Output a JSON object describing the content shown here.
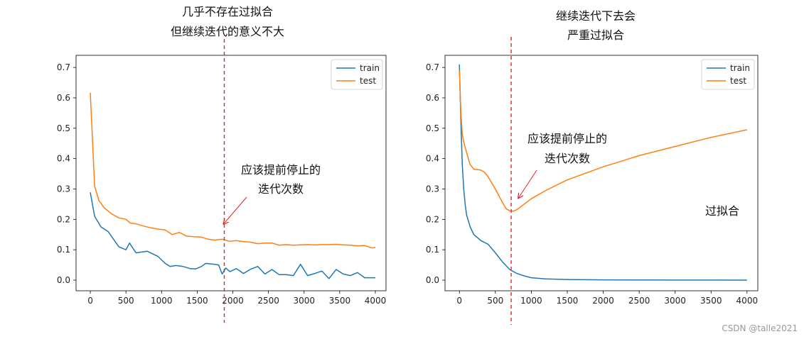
{
  "chart_data": [
    {
      "type": "line",
      "title": "",
      "xlabel": "",
      "ylabel": "",
      "xlim": [
        -200,
        4150
      ],
      "ylim": [
        -0.035,
        0.74
      ],
      "xticks": [
        0,
        500,
        1000,
        1500,
        2000,
        2500,
        3000,
        3500,
        4000
      ],
      "yticks": [
        0.0,
        0.1,
        0.2,
        0.3,
        0.4,
        0.5,
        0.6,
        0.7
      ],
      "xtick_labels": [
        "0",
        "500",
        "1000",
        "1500",
        "2000",
        "2500",
        "3000",
        "3500",
        "4000"
      ],
      "ytick_labels": [
        "0.0",
        "0.1",
        "0.2",
        "0.3",
        "0.4",
        "0.5",
        "0.6",
        "0.7"
      ],
      "legend": "top-right",
      "series": [
        {
          "name": "train",
          "color": "#1f77b4",
          "x": [
            0,
            60,
            150,
            250,
            400,
            500,
            550,
            640,
            800,
            950,
            1050,
            1120,
            1200,
            1300,
            1400,
            1480,
            1560,
            1620,
            1750,
            1800,
            1850,
            1900,
            1960,
            2050,
            2150,
            2250,
            2350,
            2450,
            2550,
            2650,
            2750,
            2850,
            2950,
            3050,
            3150,
            3250,
            3350,
            3450,
            3550,
            3650,
            3750,
            3850,
            4000
          ],
          "y": [
            0.289,
            0.21,
            0.175,
            0.16,
            0.11,
            0.1,
            0.122,
            0.09,
            0.095,
            0.078,
            0.055,
            0.045,
            0.048,
            0.045,
            0.038,
            0.037,
            0.045,
            0.055,
            0.052,
            0.05,
            0.02,
            0.04,
            0.028,
            0.038,
            0.022,
            0.036,
            0.045,
            0.02,
            0.035,
            0.018,
            0.018,
            0.015,
            0.052,
            0.015,
            0.022,
            0.03,
            0.005,
            0.035,
            0.02,
            0.015,
            0.025,
            0.008,
            0.008
          ]
        },
        {
          "name": "test",
          "color": "#ff7f0e",
          "x": [
            0,
            60,
            120,
            200,
            300,
            400,
            500,
            560,
            650,
            750,
            850,
            950,
            1050,
            1150,
            1250,
            1350,
            1450,
            1550,
            1650,
            1750,
            1850,
            1950,
            2050,
            2150,
            2250,
            2350,
            2450,
            2550,
            2650,
            2750,
            2850,
            2950,
            3050,
            3150,
            3250,
            3350,
            3450,
            3550,
            3650,
            3750,
            3850,
            3950,
            4000
          ],
          "y": [
            0.617,
            0.31,
            0.262,
            0.237,
            0.218,
            0.205,
            0.2,
            0.188,
            0.185,
            0.178,
            0.172,
            0.168,
            0.165,
            0.15,
            0.157,
            0.145,
            0.143,
            0.142,
            0.135,
            0.132,
            0.135,
            0.128,
            0.13,
            0.127,
            0.125,
            0.12,
            0.122,
            0.122,
            0.115,
            0.117,
            0.115,
            0.116,
            0.117,
            0.116,
            0.117,
            0.117,
            0.118,
            0.116,
            0.115,
            0.113,
            0.114,
            0.106,
            0.108
          ]
        }
      ],
      "early_stop_line_x": 1880,
      "annotations": [
        {
          "lines": [
            "几乎不存在过拟合",
            "但继续迭代的意义不大"
          ]
        },
        {
          "lines": [
            "应该提前停止的",
            "迭代次数"
          ],
          "arrow_to": [
            1870,
            0.185
          ]
        }
      ]
    },
    {
      "type": "line",
      "title": "",
      "xlabel": "",
      "ylabel": "",
      "xlim": [
        -200,
        4150
      ],
      "ylim": [
        -0.035,
        0.74
      ],
      "xticks": [
        0,
        500,
        1000,
        1500,
        2000,
        2500,
        3000,
        3500,
        4000
      ],
      "yticks": [
        0.0,
        0.1,
        0.2,
        0.3,
        0.4,
        0.5,
        0.6,
        0.7
      ],
      "xtick_labels": [
        "0",
        "500",
        "1000",
        "1500",
        "2000",
        "2500",
        "3000",
        "3500",
        "4000"
      ],
      "ytick_labels": [
        "0.0",
        "0.1",
        "0.2",
        "0.3",
        "0.4",
        "0.5",
        "0.6",
        "0.7"
      ],
      "legend": "top-right",
      "series": [
        {
          "name": "train",
          "color": "#1f77b4",
          "x": [
            0,
            20,
            40,
            60,
            80,
            100,
            150,
            200,
            250,
            300,
            400,
            500,
            600,
            700,
            800,
            900,
            1000,
            1200,
            1500,
            2000,
            2500,
            3000,
            3500,
            4000
          ],
          "y": [
            0.71,
            0.52,
            0.38,
            0.3,
            0.25,
            0.215,
            0.175,
            0.15,
            0.14,
            0.13,
            0.118,
            0.09,
            0.06,
            0.035,
            0.022,
            0.014,
            0.008,
            0.004,
            0.002,
            0.001,
            0.0005,
            0.0003,
            0.0002,
            0.0001
          ]
        },
        {
          "name": "test",
          "color": "#ff7f0e",
          "x": [
            0,
            20,
            40,
            60,
            100,
            150,
            200,
            250,
            300,
            350,
            400,
            500,
            600,
            650,
            700,
            750,
            800,
            900,
            1000,
            1200,
            1500,
            2000,
            2500,
            3000,
            3500,
            3800,
            4000
          ],
          "y": [
            0.69,
            0.55,
            0.48,
            0.455,
            0.42,
            0.38,
            0.365,
            0.364,
            0.362,
            0.355,
            0.34,
            0.3,
            0.255,
            0.235,
            0.228,
            0.227,
            0.232,
            0.25,
            0.268,
            0.295,
            0.33,
            0.373,
            0.41,
            0.44,
            0.47,
            0.485,
            0.495
          ]
        }
      ],
      "early_stop_line_x": 720,
      "annotations": [
        {
          "lines": [
            "继续迭代下去会",
            "严重过拟合"
          ]
        },
        {
          "lines": [
            "应该提前停止的",
            "迭代次数"
          ],
          "arrow_to": [
            820,
            0.27
          ]
        },
        {
          "lines": [
            "过拟合"
          ]
        }
      ]
    }
  ],
  "watermark": "CSDN @talle2021"
}
